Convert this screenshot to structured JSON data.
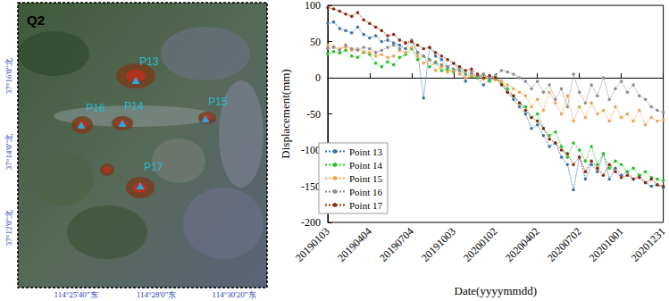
{
  "map": {
    "title": "Q2",
    "points": [
      "P13",
      "P14",
      "P15",
      "P16",
      "P17"
    ],
    "lat_labels": [
      "37°16'0\"北",
      "37°14'0\"北",
      "37°12'0\"北"
    ],
    "lon_labels": [
      "114°25'40\"东",
      "114°28'0\"东",
      "114°30'20\"东"
    ]
  },
  "chart_data": {
    "type": "line",
    "x_label": "Date(yyyymmdd)",
    "y_label": "Displacement(mm)",
    "categories": [
      "20190103",
      null,
      null,
      null,
      null,
      null,
      null,
      "20190404",
      null,
      null,
      null,
      null,
      null,
      null,
      "20190704",
      null,
      null,
      null,
      null,
      null,
      null,
      "20191003",
      null,
      null,
      null,
      null,
      null,
      null,
      "20200102",
      null,
      null,
      null,
      null,
      null,
      null,
      "20200402",
      null,
      null,
      null,
      null,
      null,
      null,
      "20200702",
      null,
      null,
      null,
      null,
      null,
      null,
      "20201001",
      null,
      null,
      null,
      null,
      null,
      null,
      "20201231"
    ],
    "series": [
      {
        "name": "Point 13",
        "color": "#3d72a8",
        "values": [
          75,
          77,
          68,
          65,
          62,
          70,
          60,
          55,
          58,
          50,
          52,
          48,
          45,
          40,
          50,
          35,
          -28,
          42,
          30,
          25,
          15,
          20,
          10,
          -5,
          5,
          0,
          -10,
          -2,
          0,
          -5,
          -20,
          -30,
          -40,
          -50,
          -70,
          -65,
          -80,
          -95,
          -90,
          -110,
          -120,
          -155,
          -110,
          -140,
          -120,
          -130,
          -105,
          -140,
          -125,
          -135,
          -130,
          -140,
          -135,
          -145,
          -150,
          -148,
          -152
        ]
      },
      {
        "name": "Point 14",
        "color": "#22c322",
        "values": [
          33,
          36,
          34,
          38,
          30,
          28,
          35,
          32,
          20,
          15,
          22,
          18,
          28,
          32,
          40,
          25,
          30,
          15,
          22,
          10,
          12,
          8,
          15,
          5,
          2,
          0,
          5,
          -5,
          0,
          -8,
          -15,
          -25,
          -35,
          -40,
          -55,
          -50,
          -70,
          -80,
          -75,
          -95,
          -110,
          -90,
          -100,
          -115,
          -95,
          -120,
          -105,
          -125,
          -115,
          -120,
          -130,
          -125,
          -135,
          -130,
          -138,
          -140,
          -142
        ]
      },
      {
        "name": "Point 15",
        "color": "#f5a04a",
        "values": [
          45,
          43,
          40,
          42,
          38,
          40,
          36,
          35,
          30,
          32,
          28,
          30,
          38,
          35,
          42,
          30,
          20,
          25,
          10,
          15,
          8,
          10,
          5,
          0,
          3,
          2,
          -2,
          0,
          -3,
          -5,
          -10,
          -15,
          -20,
          -25,
          -40,
          -30,
          -45,
          -20,
          -35,
          -50,
          -25,
          -60,
          -40,
          -55,
          -35,
          -50,
          -45,
          -60,
          -40,
          -55,
          -50,
          -60,
          -45,
          -65,
          -55,
          -60,
          -58
        ]
      },
      {
        "name": "Point 16",
        "color": "#8c8c8c",
        "values": [
          40,
          42,
          38,
          45,
          40,
          38,
          42,
          40,
          35,
          38,
          42,
          45,
          40,
          48,
          52,
          35,
          30,
          25,
          20,
          18,
          15,
          12,
          10,
          5,
          8,
          2,
          5,
          0,
          3,
          10,
          8,
          5,
          0,
          -5,
          -15,
          -5,
          -20,
          -10,
          -30,
          -15,
          -40,
          5,
          -20,
          -35,
          -10,
          -25,
          0,
          -30,
          -15,
          -5,
          -20,
          -10,
          -25,
          -30,
          -40,
          -45,
          -48
        ]
      },
      {
        "name": "Point 17",
        "color": "#8b2a0a",
        "values": [
          97,
          95,
          92,
          88,
          85,
          90,
          80,
          75,
          70,
          65,
          58,
          60,
          52,
          48,
          50,
          45,
          40,
          42,
          35,
          30,
          25,
          20,
          15,
          10,
          12,
          5,
          0,
          3,
          0,
          -10,
          -20,
          -25,
          -35,
          -45,
          -55,
          -60,
          -70,
          -85,
          -90,
          -100,
          -105,
          -120,
          -110,
          -130,
          -115,
          -125,
          -135,
          -120,
          -130,
          -138,
          -135,
          -140,
          -138,
          -145,
          -140,
          -148,
          -150
        ]
      }
    ],
    "ylim": [
      -200,
      100
    ],
    "yticks": [
      -200,
      -150,
      -100,
      -50,
      0,
      50,
      100
    ],
    "grid": false,
    "legend": "lower left",
    "marker": "circle",
    "line_style": "dotted"
  }
}
